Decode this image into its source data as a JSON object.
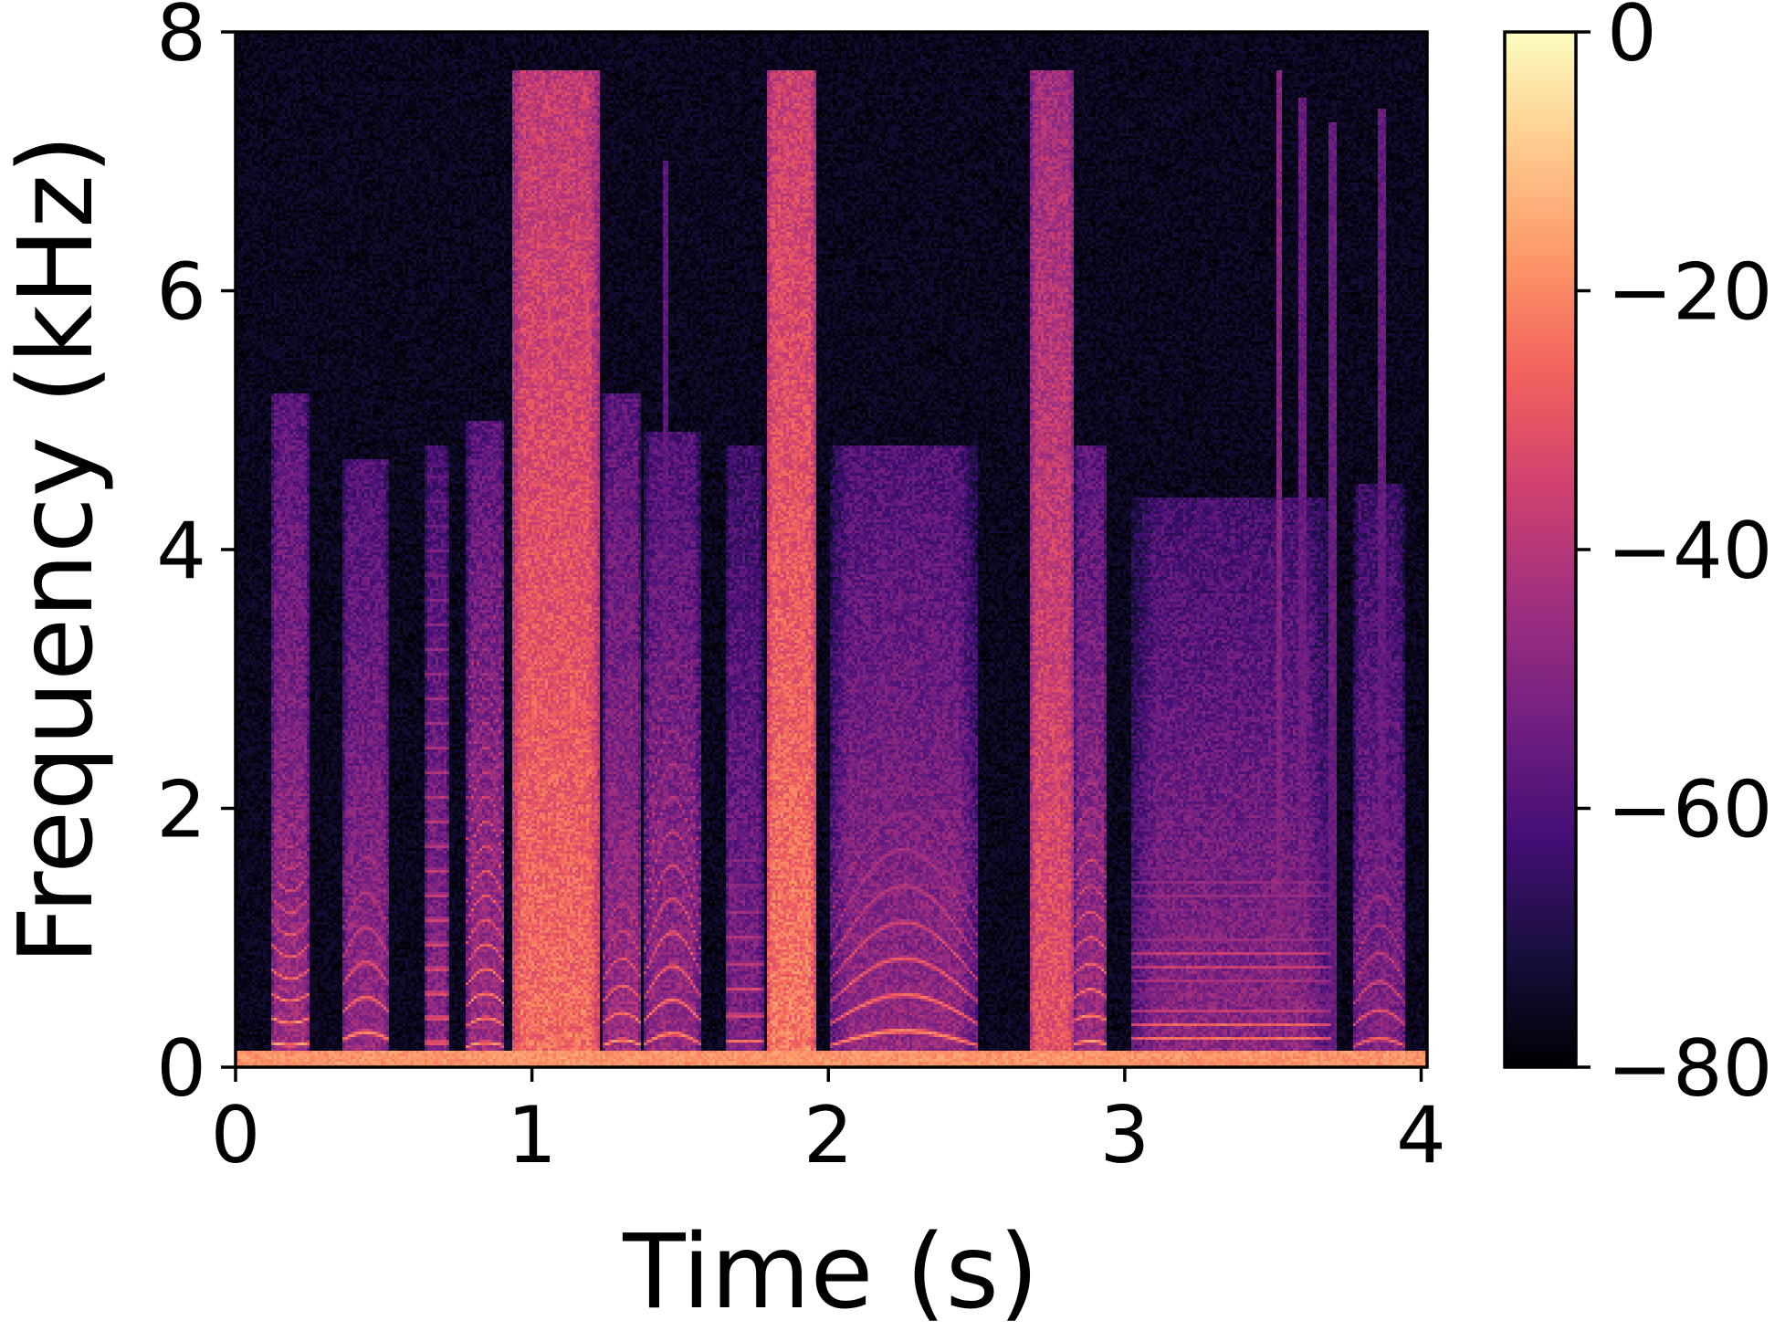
{
  "chart_data": {
    "type": "heatmap",
    "subtype": "spectrogram",
    "colormap": "magma",
    "xlabel": "Time (s)",
    "ylabel": "Frequency (kHz)",
    "xlim": [
      0,
      4.02
    ],
    "ylim": [
      0,
      8
    ],
    "x_ticks": [
      0,
      1,
      2,
      3,
      4
    ],
    "x_tick_labels": [
      "0",
      "1",
      "2",
      "3",
      "4"
    ],
    "y_ticks": [
      0,
      2,
      4,
      6,
      8
    ],
    "y_tick_labels": [
      "0",
      "2",
      "4",
      "6",
      "8"
    ],
    "colorbar": {
      "range": [
        -80,
        0
      ],
      "ticks": [
        0,
        -20,
        -40,
        -60,
        -80
      ],
      "tick_labels": [
        "0",
        "−20",
        "−40",
        "−60",
        "−80"
      ],
      "colors": [
        "#000004",
        "#180f3d",
        "#440f76",
        "#721f81",
        "#9e2f7f",
        "#cd4071",
        "#f1605d",
        "#fd9668",
        "#feca8d",
        "#fcfdbf"
      ]
    },
    "background_db": -80,
    "grid": false,
    "segments": [
      {
        "start": 0.12,
        "end": 0.25,
        "f0_hz": 190,
        "f0_slope": -20,
        "harmonic_db": -10,
        "harmonic_top_hz": 2600,
        "noise_db": -58,
        "noise_top_hz": 5200
      },
      {
        "start": 0.36,
        "end": 0.52,
        "f0_hz": 210,
        "f0_slope": 60,
        "harmonic_db": -14,
        "harmonic_top_hz": 2300,
        "noise_db": -60,
        "noise_top_hz": 4700
      },
      {
        "start": 0.64,
        "end": 0.72,
        "f0_hz": 190,
        "f0_slope": 0,
        "harmonic_db": -18,
        "harmonic_top_hz": 4600,
        "noise_db": -62,
        "noise_top_hz": 4800
      },
      {
        "start": 0.78,
        "end": 0.91,
        "f0_hz": 160,
        "f0_slope": 30,
        "harmonic_db": -14,
        "harmonic_top_hz": 4800,
        "noise_db": -58,
        "noise_top_hz": 5000
      },
      {
        "start": 0.93,
        "end": 1.23,
        "f0_hz": 0,
        "f0_slope": 0,
        "harmonic_db": 0,
        "harmonic_top_hz": 0,
        "noise_db": -38,
        "noise_top_hz": 7700
      },
      {
        "start": 1.24,
        "end": 1.37,
        "f0_hz": 170,
        "f0_slope": 40,
        "harmonic_db": -12,
        "harmonic_top_hz": 2200,
        "noise_db": -58,
        "noise_top_hz": 5200
      },
      {
        "start": 1.38,
        "end": 1.57,
        "f0_hz": 180,
        "f0_slope": 80,
        "harmonic_db": -16,
        "harmonic_top_hz": 4200,
        "noise_db": -60,
        "noise_top_hz": 4900
      },
      {
        "start": 1.65,
        "end": 1.78,
        "f0_hz": 200,
        "f0_slope": 0,
        "harmonic_db": -18,
        "harmonic_top_hz": 2000,
        "noise_db": -64,
        "noise_top_hz": 4800
      },
      {
        "start": 1.79,
        "end": 1.96,
        "f0_hz": 0,
        "f0_slope": 0,
        "harmonic_db": 0,
        "harmonic_top_hz": 0,
        "noise_db": -36,
        "noise_top_hz": 7700
      },
      {
        "start": 2.01,
        "end": 2.5,
        "f0_hz": 170,
        "f0_slope": 110,
        "harmonic_db": -12,
        "harmonic_top_hz": 2200,
        "noise_db": -60,
        "noise_top_hz": 4800
      },
      {
        "start": 2.68,
        "end": 2.83,
        "f0_hz": 0,
        "f0_slope": 0,
        "harmonic_db": 0,
        "harmonic_top_hz": 0,
        "noise_db": -44,
        "noise_top_hz": 7700
      },
      {
        "start": 2.83,
        "end": 2.94,
        "f0_hz": 180,
        "f0_slope": 20,
        "harmonic_db": -12,
        "harmonic_top_hz": 3200,
        "noise_db": -58,
        "noise_top_hz": 4800
      },
      {
        "start": 3.02,
        "end": 3.7,
        "f0_hz": 110,
        "f0_slope": 0,
        "harmonic_db": -16,
        "harmonic_top_hz": 1900,
        "noise_db": -62,
        "noise_top_hz": 4400
      },
      {
        "start": 3.77,
        "end": 3.95,
        "f0_hz": 160,
        "f0_slope": 60,
        "harmonic_db": -20,
        "harmonic_top_hz": 2400,
        "noise_db": -64,
        "noise_top_hz": 4500
      }
    ],
    "transients": [
      {
        "time": 3.52,
        "db": -50,
        "top_hz": 7700
      },
      {
        "time": 3.6,
        "db": -55,
        "top_hz": 7500
      },
      {
        "time": 3.7,
        "db": -55,
        "top_hz": 7300
      },
      {
        "time": 3.87,
        "db": -56,
        "top_hz": 7400
      },
      {
        "time": 1.45,
        "db": -58,
        "top_hz": 7000
      },
      {
        "time": 1.87,
        "db": -46,
        "top_hz": 7600
      }
    ]
  }
}
